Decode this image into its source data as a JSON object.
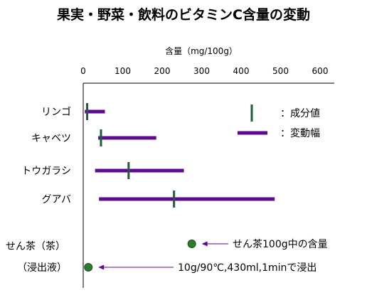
{
  "chart_data": {
    "type": "bar",
    "title": "果実・野菜・飲料のビタミンC含量の変動",
    "xlabel": "含量（mg/100g）",
    "xlim": [
      0,
      600
    ],
    "xticks": [
      0,
      100,
      200,
      300,
      400,
      500,
      600
    ],
    "series": [
      {
        "name": "リンゴ",
        "min": 4,
        "max": 55,
        "value": 10
      },
      {
        "name": "キャベツ",
        "min": 38,
        "max": 185,
        "value": 45
      },
      {
        "name": "トウガラシ",
        "min": 30,
        "max": 255,
        "value": 115
      },
      {
        "name": "グアバ",
        "min": 40,
        "max": 485,
        "value": 230
      }
    ],
    "points": [
      {
        "label": "せん茶100g中の含量",
        "value": 275
      },
      {
        "label": "10g/90℃,430ml,1minで浸出",
        "value": 13
      }
    ],
    "tea_label_1": "せん茶（茶）",
    "tea_label_2": "（浸出液）",
    "legend": {
      "value_label": "：成分値",
      "range_label": "：変動幅"
    },
    "colors": {
      "range": "#5b0a91",
      "value": "#1e5e3c",
      "dot": "#2e7a2e",
      "arrow": "#5b0a91"
    }
  }
}
